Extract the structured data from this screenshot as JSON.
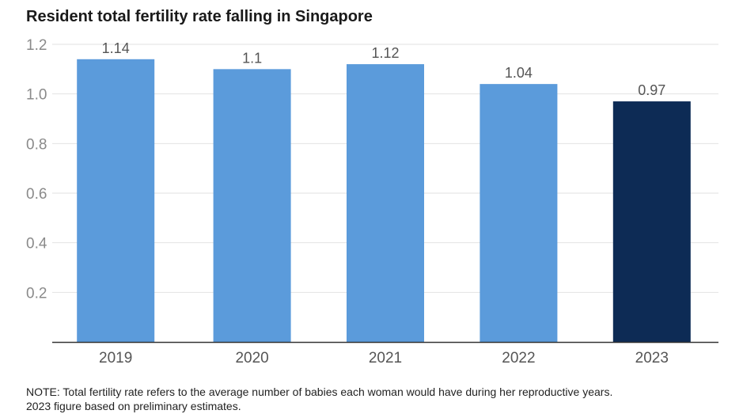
{
  "title": "Resident total fertility rate falling in Singapore",
  "note_lines": [
    "NOTE: Total fertility rate refers to the average number of babies each woman would have during her reproductive years.",
    "2023 figure based on preliminary estimates."
  ],
  "colors": {
    "bar": "#5b9bdb",
    "bar_highlight": "#0d2b55",
    "grid": "#e2e2e2",
    "axis": "#333333",
    "tick_text": "#8a8a8a",
    "label_text": "#555555"
  },
  "chart_data": {
    "type": "bar",
    "title": "Resident total fertility rate falling in Singapore",
    "xlabel": "",
    "ylabel": "",
    "categories": [
      "2019",
      "2020",
      "2021",
      "2022",
      "2023"
    ],
    "values": [
      1.14,
      1.1,
      1.12,
      1.04,
      0.97
    ],
    "value_labels": [
      "1.14",
      "1.1",
      "1.12",
      "1.04",
      "0.97"
    ],
    "highlight_index": 4,
    "ylim": [
      0,
      1.2
    ],
    "yticks": [
      0.2,
      0.4,
      0.6,
      0.8,
      1.0,
      1.2
    ],
    "ytick_labels": [
      "0.2",
      "0.4",
      "0.6",
      "0.8",
      "1.0",
      "1.2"
    ],
    "grid": true,
    "legend": "none"
  }
}
